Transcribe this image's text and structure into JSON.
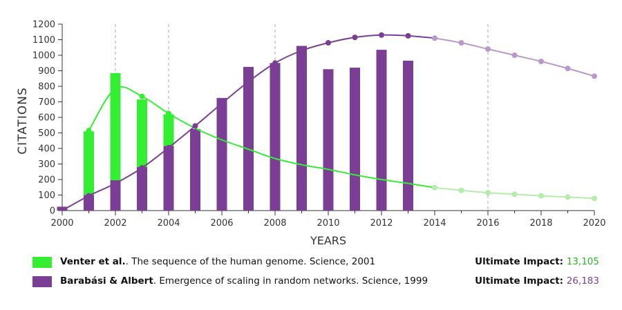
{
  "chart_data": {
    "type": "bar",
    "ylabel": "CITATIONS",
    "xlabel": "YEARS",
    "xlim": [
      2000,
      2020
    ],
    "ylim": [
      0,
      1200
    ],
    "x_ticks": [
      "2000",
      "2002",
      "2004",
      "2006",
      "2008",
      "2010",
      "2012",
      "2014",
      "2016",
      "2018",
      "2020"
    ],
    "y_ticks": [
      "0",
      "100",
      "200",
      "300",
      "400",
      "500",
      "600",
      "700",
      "800",
      "900",
      "1000",
      "1100",
      "1200"
    ],
    "dashed_gridlines_x": [
      2002,
      2004,
      2008,
      2016
    ],
    "series": [
      {
        "name": "Barabási & Albert",
        "color": "#7a3f95",
        "fade_color": "#b89ac9",
        "bars": {
          "x": [
            2000,
            2001,
            2002,
            2003,
            2004,
            2005,
            2006,
            2007,
            2008,
            2009,
            2010,
            2011,
            2012,
            2013
          ],
          "values": [
            25,
            100,
            195,
            280,
            415,
            525,
            725,
            925,
            950,
            1060,
            910,
            920,
            1035,
            965
          ]
        },
        "curve_points": {
          "x": [
            2000,
            2001,
            2002,
            2003,
            2004,
            2005,
            2006,
            2007,
            2008,
            2009,
            2010,
            2011,
            2012,
            2013
          ],
          "values": [
            0,
            95,
            175,
            275,
            405,
            545,
            690,
            830,
            950,
            1030,
            1080,
            1115,
            1130,
            1125
          ]
        },
        "forecast_points": {
          "x": [
            2014,
            2015,
            2016,
            2017,
            2018,
            2019,
            2020
          ],
          "values": [
            1110,
            1080,
            1040,
            1000,
            960,
            915,
            865
          ]
        }
      },
      {
        "name": "Venter et al.",
        "color": "#33ee33",
        "fade_color": "#b4ecaa",
        "bars": {
          "x": [
            2001,
            2002,
            2003,
            2004
          ],
          "values": [
            510,
            885,
            715,
            620
          ]
        },
        "curve_points": {
          "x": [
            2001,
            2003,
            2004,
            2005
          ],
          "values": [
            515,
            735,
            625,
            545
          ]
        },
        "curve_path": {
          "x": [
            2001,
            2002,
            2003,
            2004,
            2005,
            2006,
            2007,
            2008,
            2009,
            2010,
            2011,
            2012,
            2013
          ],
          "values": [
            515,
            785,
            735,
            625,
            530,
            455,
            395,
            335,
            295,
            265,
            230,
            200,
            175
          ]
        },
        "forecast_points": {
          "x": [
            2014,
            2015,
            2016,
            2017,
            2018,
            2019,
            2020
          ],
          "values": [
            148,
            130,
            115,
            105,
            95,
            87,
            78
          ]
        }
      }
    ]
  },
  "legend": {
    "items": [
      {
        "name_bold": "Venter et al.",
        "text": ". The sequence of the human genome. Science, 2001",
        "impact_label": "Ultimate Impact: ",
        "impact_value": "13,105",
        "color": "#33ee33",
        "value_color": "#22bb22"
      },
      {
        "name_bold": "Barabási  & Albert",
        "text": ".  Emergence of scaling in random networks. Science, 1999",
        "impact_label": "Ultimate Impact: ",
        "impact_value": "26,183",
        "color": "#7a3f95",
        "value_color": "#7a3f95"
      }
    ]
  }
}
